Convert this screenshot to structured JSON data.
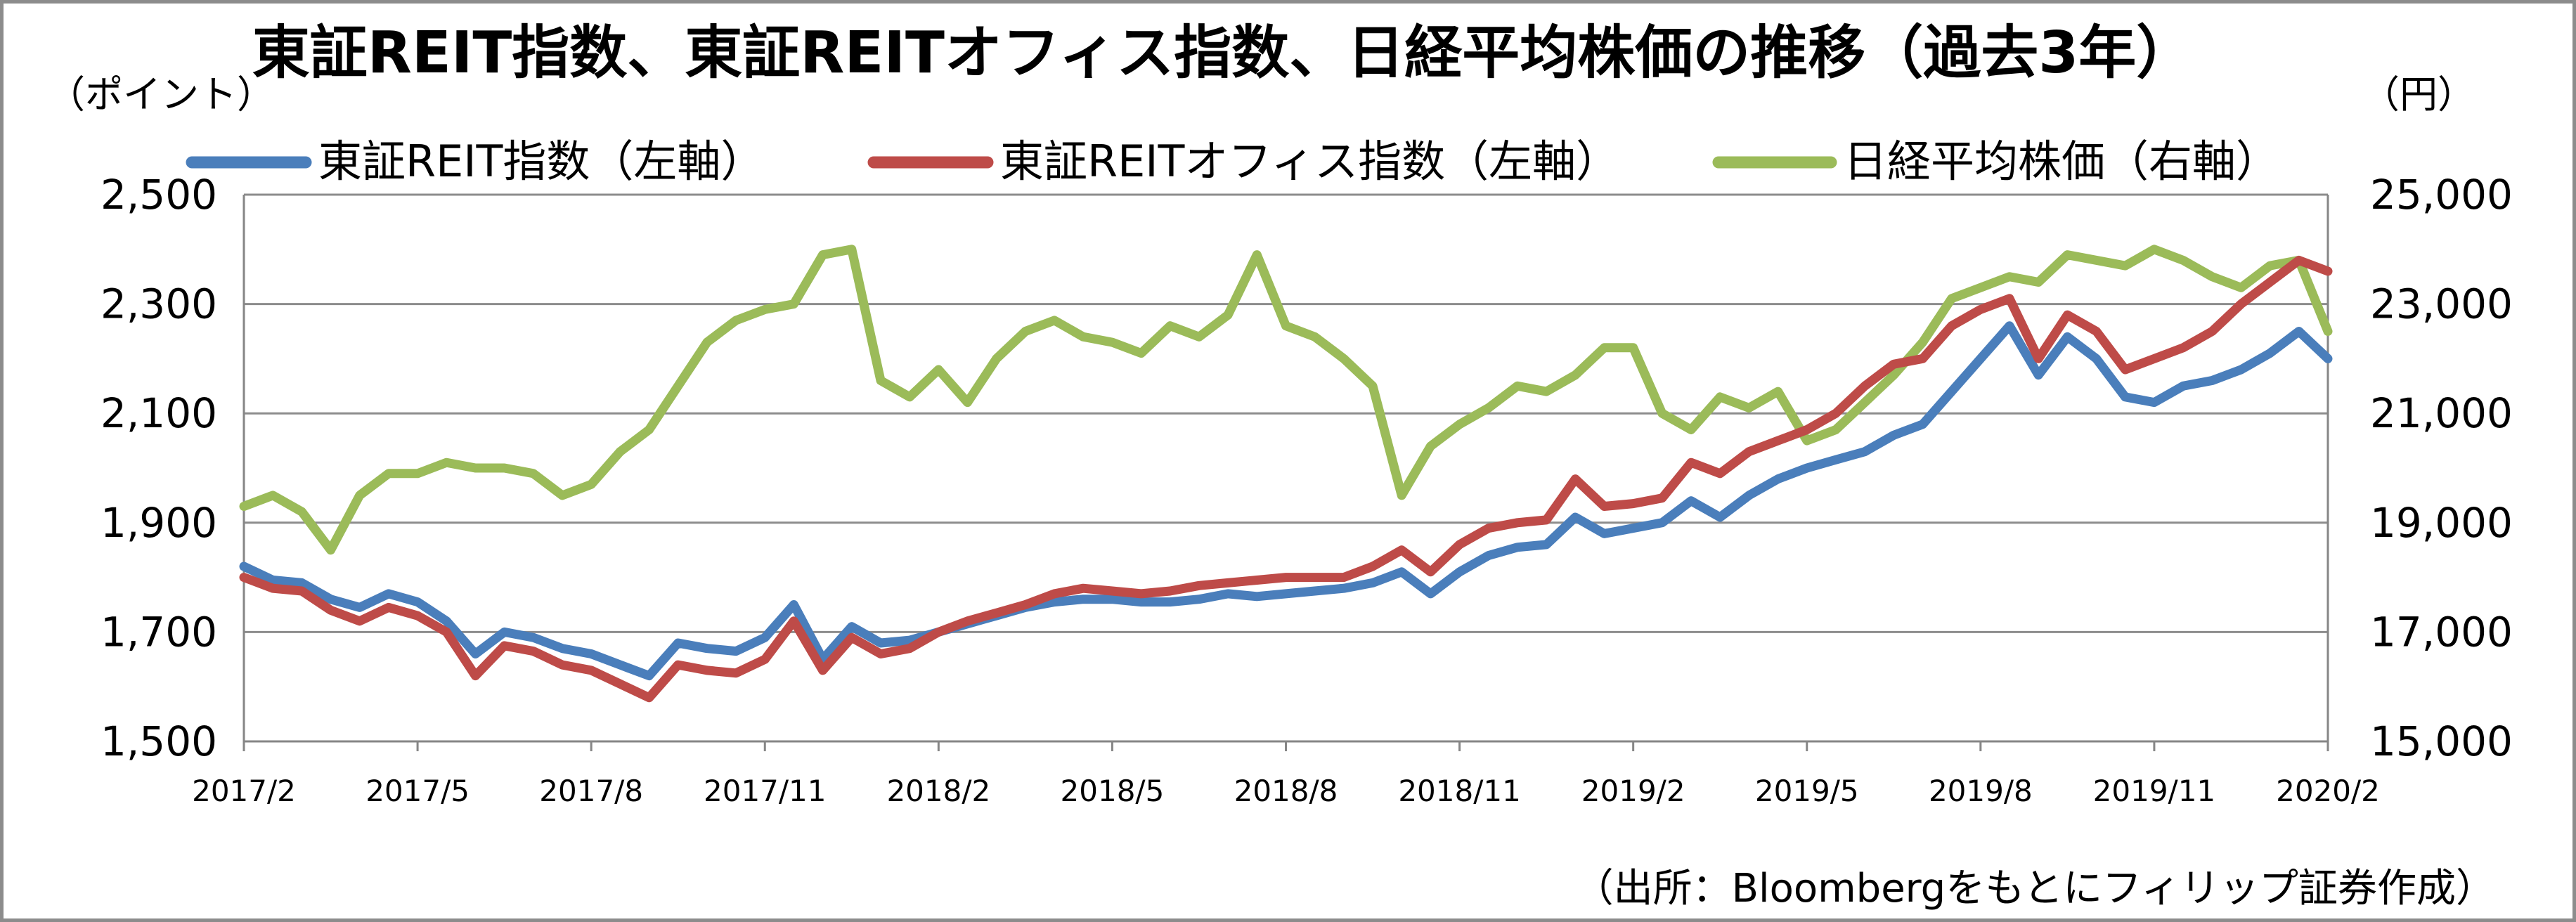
{
  "chart_data": {
    "type": "line",
    "title": "東証REIT指数、東証REITオフィス指数、日経平均株価の推移（過去3年）",
    "left_axis_unit": "（ポイント）",
    "right_axis_unit": "（円）",
    "source": "（出所：Bloombergをもとにフィリップ証券作成）",
    "x_ticks": [
      "2017/2",
      "2017/5",
      "2017/8",
      "2017/11",
      "2018/2",
      "2018/5",
      "2018/8",
      "2018/11",
      "2019/2",
      "2019/5",
      "2019/8",
      "2019/11",
      "2020/2"
    ],
    "ylim_left": [
      1500,
      2500
    ],
    "ylim_right": [
      15000,
      25000
    ],
    "yticks_left": [
      "1,500",
      "1,700",
      "1,900",
      "2,100",
      "2,300",
      "2,500"
    ],
    "yticks_right": [
      "15,000",
      "17,000",
      "19,000",
      "21,000",
      "23,000",
      "25,000"
    ],
    "grid": true,
    "legend_position": "top",
    "x_range": [
      0,
      36
    ],
    "series": [
      {
        "name": "東証REIT指数（左軸）",
        "axis": "left",
        "color": "#4a7ebb",
        "x": [
          0,
          0.5,
          1,
          1.5,
          2,
          2.5,
          3,
          3.5,
          4,
          4.5,
          5,
          5.5,
          6,
          6.5,
          7,
          7.5,
          8,
          8.5,
          9,
          9.5,
          10,
          10.5,
          11,
          11.5,
          12,
          12.5,
          13,
          13.5,
          14,
          14.5,
          15,
          15.5,
          16,
          16.5,
          17,
          17.5,
          18,
          18.5,
          19,
          19.5,
          20,
          20.5,
          21,
          21.5,
          22,
          22.5,
          23,
          23.5,
          24,
          24.5,
          25,
          25.5,
          26,
          26.5,
          27,
          27.5,
          28,
          28.5,
          29,
          29.5,
          30,
          30.5,
          31,
          31.5,
          32,
          32.5,
          33,
          33.5,
          34,
          34.5,
          35,
          35.5,
          36
        ],
        "values": [
          1820,
          1795,
          1790,
          1760,
          1745,
          1770,
          1755,
          1720,
          1660,
          1700,
          1690,
          1670,
          1660,
          1640,
          1620,
          1680,
          1670,
          1665,
          1690,
          1750,
          1650,
          1710,
          1680,
          1685,
          1700,
          1715,
          1730,
          1745,
          1755,
          1760,
          1760,
          1755,
          1755,
          1760,
          1770,
          1765,
          1770,
          1775,
          1780,
          1790,
          1810,
          1770,
          1810,
          1840,
          1855,
          1860,
          1910,
          1880,
          1890,
          1900,
          1940,
          1910,
          1950,
          1980,
          2000,
          2015,
          2030,
          2060,
          2080,
          2140,
          2200,
          2260,
          2170,
          2240,
          2200,
          2130,
          2120,
          2150,
          2160,
          2180,
          2210,
          2250,
          2200
        ]
      },
      {
        "name": "東証REITオフィス指数（左軸）",
        "axis": "left",
        "color": "#be4b48",
        "x": [
          0,
          0.5,
          1,
          1.5,
          2,
          2.5,
          3,
          3.5,
          4,
          4.5,
          5,
          5.5,
          6,
          6.5,
          7,
          7.5,
          8,
          8.5,
          9,
          9.5,
          10,
          10.5,
          11,
          11.5,
          12,
          12.5,
          13,
          13.5,
          14,
          14.5,
          15,
          15.5,
          16,
          16.5,
          17,
          17.5,
          18,
          18.5,
          19,
          19.5,
          20,
          20.5,
          21,
          21.5,
          22,
          22.5,
          23,
          23.5,
          24,
          24.5,
          25,
          25.5,
          26,
          26.5,
          27,
          27.5,
          28,
          28.5,
          29,
          29.5,
          30,
          30.5,
          31,
          31.5,
          32,
          32.5,
          33,
          33.5,
          34,
          34.5,
          35,
          35.5,
          36
        ],
        "values": [
          1800,
          1780,
          1775,
          1740,
          1720,
          1745,
          1730,
          1700,
          1620,
          1675,
          1665,
          1640,
          1630,
          1605,
          1580,
          1640,
          1630,
          1625,
          1650,
          1720,
          1630,
          1690,
          1660,
          1670,
          1700,
          1720,
          1735,
          1750,
          1770,
          1780,
          1775,
          1770,
          1775,
          1785,
          1790,
          1795,
          1800,
          1800,
          1800,
          1820,
          1850,
          1810,
          1860,
          1890,
          1900,
          1905,
          1980,
          1930,
          1935,
          1945,
          2010,
          1990,
          2030,
          2050,
          2070,
          2100,
          2150,
          2190,
          2200,
          2260,
          2290,
          2310,
          2200,
          2280,
          2250,
          2180,
          2200,
          2220,
          2250,
          2300,
          2340,
          2380,
          2360
        ]
      },
      {
        "name": "日経平均株価（右軸）",
        "axis": "right",
        "color": "#9bbb59",
        "x": [
          0,
          0.5,
          1,
          1.5,
          2,
          2.5,
          3,
          3.5,
          4,
          4.5,
          5,
          5.5,
          6,
          6.5,
          7,
          7.5,
          8,
          8.5,
          9,
          9.5,
          10,
          10.5,
          11,
          11.5,
          12,
          12.5,
          13,
          13.5,
          14,
          14.5,
          15,
          15.5,
          16,
          16.5,
          17,
          17.5,
          18,
          18.5,
          19,
          19.5,
          20,
          20.5,
          21,
          21.5,
          22,
          22.5,
          23,
          23.5,
          24,
          24.5,
          25,
          25.5,
          26,
          26.5,
          27,
          27.5,
          28,
          28.5,
          29,
          29.5,
          30,
          30.5,
          31,
          31.5,
          32,
          32.5,
          33,
          33.5,
          34,
          34.5,
          35,
          35.5,
          36
        ],
        "values": [
          19300,
          19500,
          19200,
          18500,
          19500,
          19900,
          19900,
          20100,
          20000,
          20000,
          19900,
          19500,
          19700,
          20300,
          20700,
          21500,
          22300,
          22700,
          22900,
          23000,
          23900,
          24000,
          21600,
          21300,
          21800,
          21200,
          22000,
          22500,
          22700,
          22400,
          22300,
          22100,
          22600,
          22400,
          22800,
          23900,
          22600,
          22400,
          22000,
          21500,
          19500,
          20400,
          20800,
          21100,
          21500,
          21400,
          21700,
          22200,
          22200,
          21000,
          20700,
          21300,
          21100,
          21400,
          20500,
          20700,
          21200,
          21700,
          22300,
          23100,
          23300,
          23500,
          23400,
          23900,
          23800,
          23700,
          24000,
          23800,
          23500,
          23300,
          23700,
          23800,
          22500
        ]
      }
    ]
  }
}
